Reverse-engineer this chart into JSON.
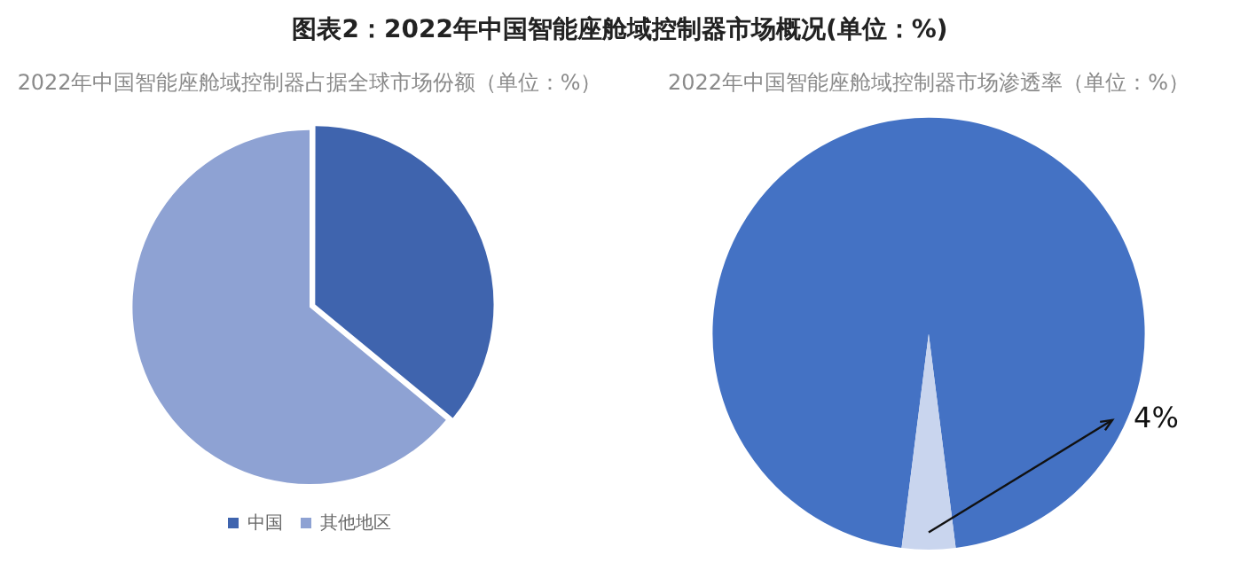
{
  "chart_data": [
    {
      "type": "pie",
      "title": "图表2：2022年中国智能座舱域控制器市场概况(单位：%)",
      "subtitle": "2022年中国智能座舱域控制器占据全球市场份额（单位：%）",
      "categories": [
        "中国",
        "其他地区"
      ],
      "values": [
        36,
        64
      ],
      "colors": [
        "#3f64ae",
        "#8ea2d3"
      ],
      "legend": "bottom"
    },
    {
      "type": "pie",
      "title": "2022年中国智能座舱域控制器市场渗透率（单位：%）",
      "categories": [
        null,
        null
      ],
      "values": [
        96,
        4
      ],
      "colors": [
        "#4472c4",
        "#c9d5ee"
      ],
      "value_labels": [
        null,
        "4%"
      ],
      "legend": false
    }
  ]
}
